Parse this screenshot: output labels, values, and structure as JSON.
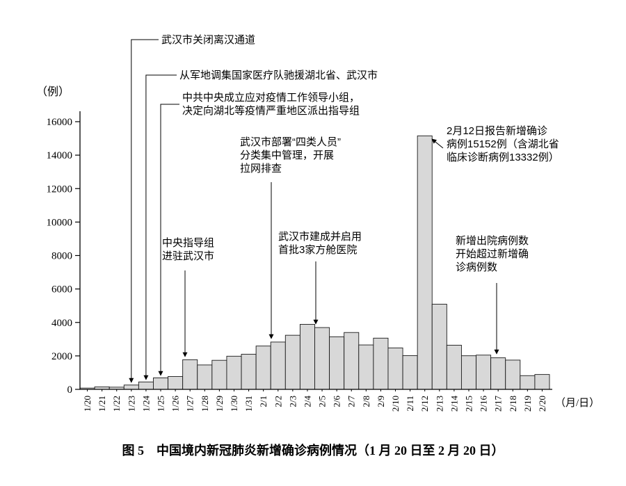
{
  "figure": {
    "caption": "图 5　中国境内新冠肺炎新增确诊病例情况（1 月 20 日至 2 月 20 日）"
  },
  "chart_data": {
    "type": "bar",
    "title": "中国境内新冠肺炎新增确诊病例情况（1月20日至2月20日）",
    "ylabel": "（例）",
    "xlabel": "（月/日）",
    "ylim": [
      0,
      16000
    ],
    "yticks": [
      0,
      2000,
      4000,
      6000,
      8000,
      10000,
      12000,
      14000,
      16000
    ],
    "grid": false,
    "legend": false,
    "bar_fill": "#d8d8d8",
    "bar_stroke": "#1a1a1a",
    "categories": [
      "1/20",
      "1/21",
      "1/22",
      "1/23",
      "1/24",
      "1/25",
      "1/26",
      "1/27",
      "1/28",
      "1/29",
      "1/30",
      "1/31",
      "2/1",
      "2/2",
      "2/3",
      "2/4",
      "2/5",
      "2/6",
      "2/7",
      "2/8",
      "2/9",
      "2/10",
      "2/11",
      "2/12",
      "2/13",
      "2/14",
      "2/15",
      "2/16",
      "2/17",
      "2/18",
      "2/19",
      "2/20"
    ],
    "values": [
      77,
      149,
      131,
      259,
      444,
      688,
      769,
      1771,
      1459,
      1737,
      1982,
      2102,
      2590,
      2829,
      3235,
      3887,
      3694,
      3143,
      3399,
      2656,
      3062,
      2478,
      2015,
      15152,
      5090,
      2641,
      2009,
      2048,
      1886,
      1749,
      820,
      889
    ],
    "annotations": [
      {
        "lines": [
          "武汉市关闭离汉通道"
        ],
        "target": "1/23"
      },
      {
        "lines": [
          "从军地调集国家医疗队驰援湖北省、武汉市"
        ],
        "target": "1/24"
      },
      {
        "lines": [
          "中共中央成立应对疫情工作领导小组，",
          "决定向湖北等疫情严重地区派出指导组"
        ],
        "target": "1/25"
      },
      {
        "lines": [
          "中央指导组",
          "进驻武汉市"
        ],
        "target": "1/27"
      },
      {
        "lines": [
          "武汉市部署“四类人员”",
          "分类集中管理，开展",
          "拉网排查"
        ],
        "target": "2/2"
      },
      {
        "lines": [
          "武汉市建成并启用",
          "首批3家方舱医院"
        ],
        "target": "2/5"
      },
      {
        "lines": [
          "2月12日报告新增确诊",
          "病例15152例（含湖北省",
          "临床诊断病例13332例）"
        ],
        "target": "2/12"
      },
      {
        "lines": [
          "新增出院病例数",
          "开始超过新增确",
          "诊病例数"
        ],
        "target": "2/18"
      }
    ]
  }
}
